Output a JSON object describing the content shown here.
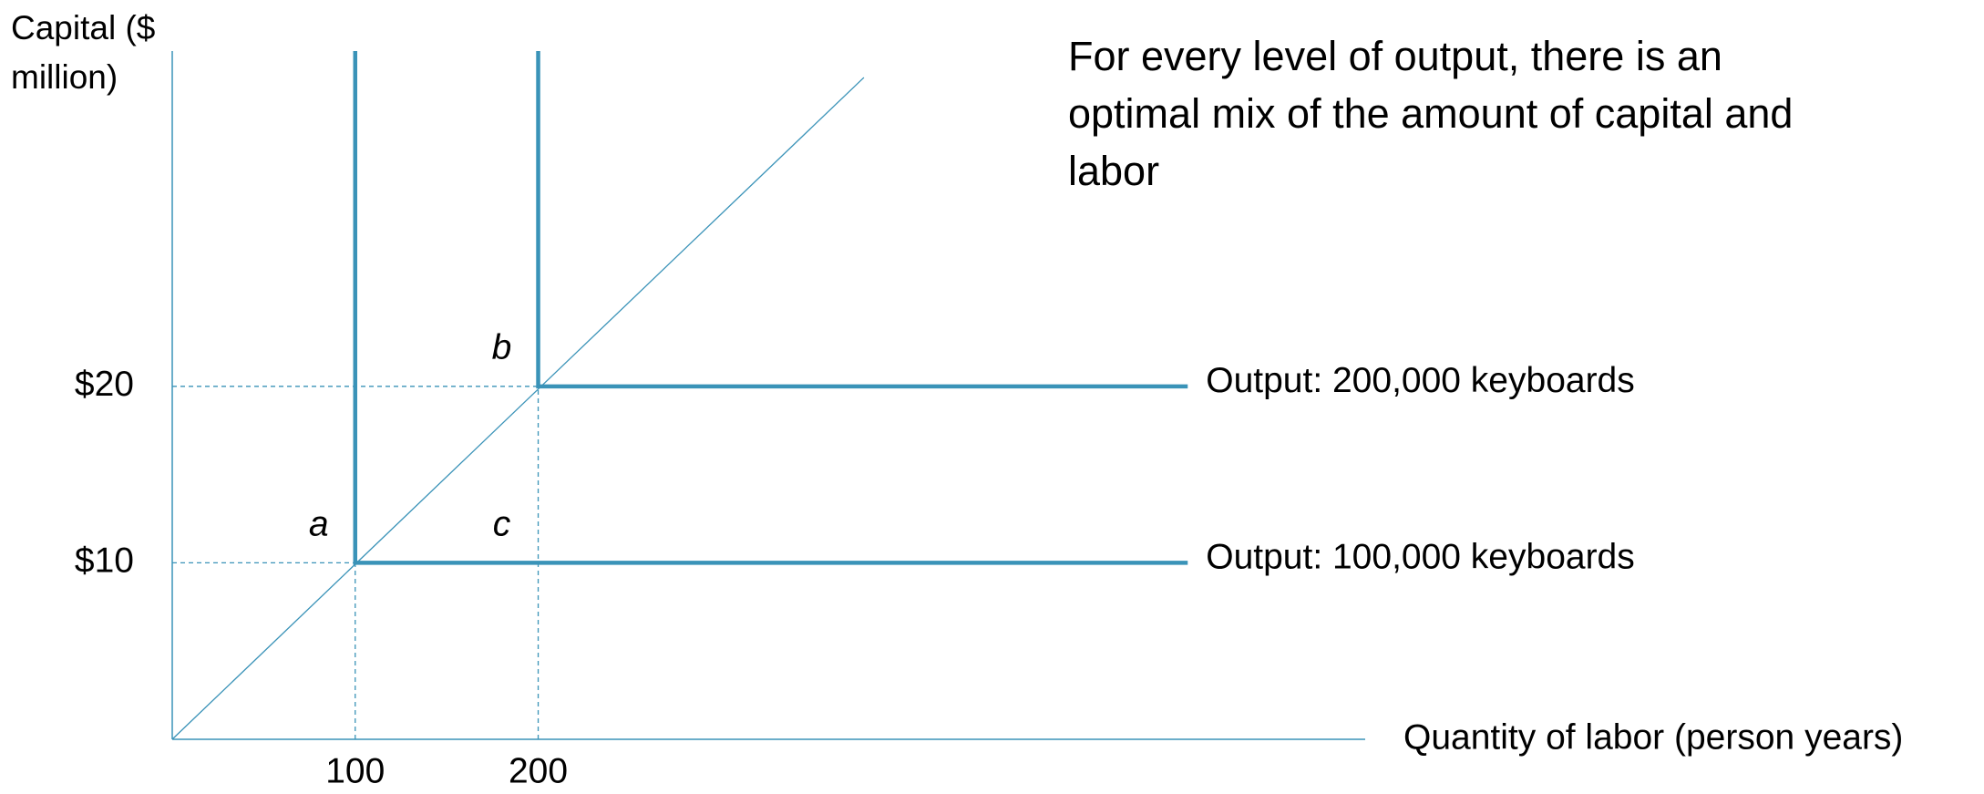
{
  "chart_data": {
    "type": "line",
    "note": "For every level of output, there is an optimal mix of the amount of capital and labor",
    "xlabel": "Quantity of labor (person years)",
    "ylabel": "Capital ($ million)",
    "xlim": [
      0,
      652
    ],
    "ylim": [
      0,
      39
    ],
    "xticks": [
      100,
      200
    ],
    "yticks": [
      {
        "value": 10,
        "label": "$10"
      },
      {
        "value": 20,
        "label": "$20"
      }
    ],
    "color": "#3a93b8",
    "series": [
      {
        "name": "Output: 100,000 keyboards",
        "color": "#3a93b8",
        "x": [
          100,
          100,
          555
        ],
        "values": [
          39,
          10,
          10
        ]
      },
      {
        "name": "Output:  200,000 keyboards",
        "color": "#3a93b8",
        "x": [
          200,
          200,
          555
        ],
        "values": [
          39,
          20,
          20
        ]
      }
    ],
    "ray": {
      "x": [
        0,
        378
      ],
      "values": [
        0,
        37.5
      ]
    },
    "annotations": [
      {
        "text": "a",
        "x": 100,
        "y": 10
      },
      {
        "text": "b",
        "x": 200,
        "y": 20
      },
      {
        "text": "c",
        "x": 200,
        "y": 10
      }
    ]
  }
}
